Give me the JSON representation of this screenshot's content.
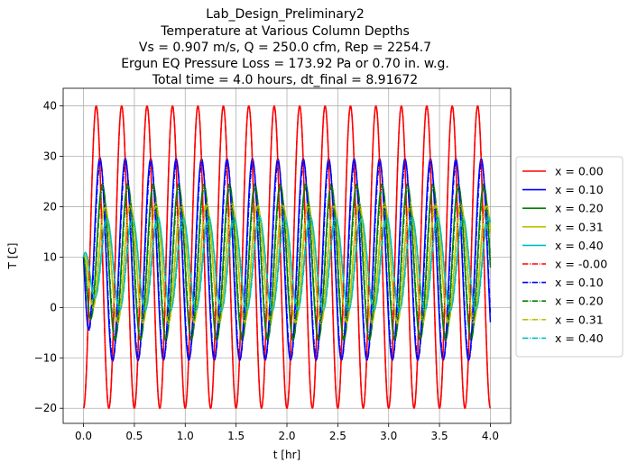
{
  "chart_data": {
    "type": "line",
    "title_lines": [
      "Lab_Design_Preliminary2",
      "Temperature at Various Column Depths",
      "Vs = 0.907 m/s, Q = 250.0 cfm, Rep = 2254.7",
      "Ergun EQ Pressure Loss = 173.92 Pa or 0.70 in. w.g.",
      "Total time = 4.0 hours, dt_final = 8.91672"
    ],
    "xlabel": "t [hr]",
    "ylabel": "T [C]",
    "xlim": [
      -0.2,
      4.2
    ],
    "ylim": [
      -23,
      43.5
    ],
    "xticks": [
      0.0,
      0.5,
      1.0,
      1.5,
      2.0,
      2.5,
      3.0,
      3.5,
      4.0
    ],
    "xtick_labels": [
      "0.0",
      "0.5",
      "1.0",
      "1.5",
      "2.0",
      "2.5",
      "3.0",
      "3.5",
      "4.0"
    ],
    "yticks": [
      -20,
      -10,
      0,
      10,
      20,
      30,
      40
    ],
    "ytick_labels": [
      "−20",
      "−10",
      "0",
      "10",
      "20",
      "30",
      "40"
    ],
    "grid": true,
    "legend_position": "right-outside",
    "time_range": [
      0.0,
      4.0
    ],
    "period_hr": 0.25,
    "initial_temp": 10,
    "series": [
      {
        "name": "x = 0.00",
        "color": "#ff0000",
        "style": "solid",
        "mean": 10,
        "amplitude": 30,
        "phase_lag": 0.0,
        "ramp": 0.0,
        "overshoot": 0
      },
      {
        "name": "x = 0.10",
        "color": "#0000ff",
        "style": "solid",
        "mean": 9.5,
        "amplitude": 20,
        "phase_lag": 0.9,
        "ramp": 0.12,
        "overshoot": 2.5
      },
      {
        "name": "x = 0.20",
        "color": "#008000",
        "style": "solid",
        "mean": 9.0,
        "amplitude": 15.5,
        "phase_lag": 1.5,
        "ramp": 0.16,
        "overshoot": 2.5
      },
      {
        "name": "x = 0.31",
        "color": "#bfbf00",
        "style": "solid",
        "mean": 8.8,
        "amplitude": 12.0,
        "phase_lag": 2.1,
        "ramp": 0.2,
        "overshoot": 2.0
      },
      {
        "name": "x = 0.40",
        "color": "#00bfbf",
        "style": "solid",
        "mean": 8.7,
        "amplitude": 9.5,
        "phase_lag": 2.6,
        "ramp": 0.24,
        "overshoot": 1.5
      },
      {
        "name": "x = -0.00",
        "color": "#ff0000",
        "style": "dashdot",
        "mean": 10,
        "amplitude": 30,
        "phase_lag": 0.0,
        "ramp": 0.0,
        "overshoot": 0
      },
      {
        "name": "x = 0.10",
        "color": "#0000ff",
        "style": "dashdot",
        "mean": 9.3,
        "amplitude": 19.5,
        "phase_lag": 1.0,
        "ramp": 0.12,
        "overshoot": 2.0
      },
      {
        "name": "x = 0.20",
        "color": "#008000",
        "style": "dashdot",
        "mean": 8.9,
        "amplitude": 15.0,
        "phase_lag": 1.6,
        "ramp": 0.16,
        "overshoot": 2.0
      },
      {
        "name": "x = 0.31",
        "color": "#bfbf00",
        "style": "dashdot",
        "mean": 8.6,
        "amplitude": 11.5,
        "phase_lag": 2.2,
        "ramp": 0.2,
        "overshoot": 1.5
      },
      {
        "name": "x = 0.40",
        "color": "#00bfbf",
        "style": "dashdot",
        "mean": 8.5,
        "amplitude": 9.0,
        "phase_lag": 2.7,
        "ramp": 0.24,
        "overshoot": 1.2
      }
    ]
  }
}
